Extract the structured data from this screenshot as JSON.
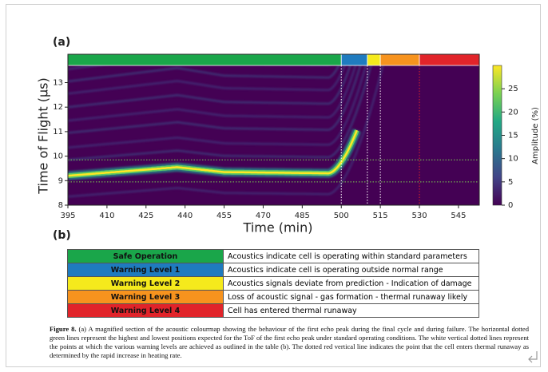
{
  "figure": {
    "panel_a": "(a)",
    "panel_b": "(b)"
  },
  "chart_data": {
    "type": "heatmap",
    "xlabel": "Time (min)",
    "ylabel": "Time of Flight (μs)",
    "xlim": [
      395,
      553
    ],
    "xticks": [
      395,
      410,
      425,
      440,
      455,
      470,
      485,
      500,
      515,
      530,
      545
    ],
    "ylim": [
      8,
      13.7
    ],
    "yticks": [
      8,
      9,
      10,
      11,
      12,
      13
    ],
    "colorbar": {
      "label": "Amplitude (%)",
      "lim": [
        0,
        30
      ],
      "ticks": [
        0,
        5,
        10,
        15,
        20,
        25
      ]
    },
    "status_bar": [
      {
        "start": 395,
        "end": 500,
        "color": "#1aa64a"
      },
      {
        "start": 500,
        "end": 510,
        "color": "#1f7bbf"
      },
      {
        "start": 510,
        "end": 515,
        "color": "#f5ea1c"
      },
      {
        "start": 515,
        "end": 530,
        "color": "#f7931e"
      },
      {
        "start": 530,
        "end": 553,
        "color": "#e1242a"
      }
    ],
    "vlines": [
      {
        "x": 500,
        "color": "#ffffff"
      },
      {
        "x": 510,
        "color": "#ffffff"
      },
      {
        "x": 515,
        "color": "#ffffff"
      },
      {
        "x": 530,
        "color": "#e1242a"
      }
    ],
    "hlines": [
      {
        "y": 9.85,
        "color": "#7ad151"
      },
      {
        "y": 8.95,
        "color": "#7ad151"
      }
    ]
  },
  "table": {
    "rows": [
      [
        "Safe Operation",
        "Acoustics indicate cell is operating within standard parameters"
      ],
      [
        "Warning Level 1",
        "Acoustics indicate cell is operating outside normal range"
      ],
      [
        "Warning Level 2",
        "Acoustics signals deviate from prediction - Indication of damage"
      ],
      [
        "Warning Level 3",
        "Loss of acoustic signal - gas formation - thermal runaway likely"
      ],
      [
        "Warning Level 4",
        "Cell has entered thermal runaway"
      ]
    ],
    "colors": [
      "#1aa64a",
      "#1f7bbf",
      "#f5ea1c",
      "#f7931e",
      "#e1242a"
    ]
  },
  "caption": {
    "label": "Figure 8.",
    "text": "(a) A magnified section of the acoustic colourmap showing the behaviour of the first echo peak during the final cycle and during failure. The horizontal dotted green lines represent the highest and lowest positions expected for the ToF of the first echo peak under standard operating conditions. The white vertical dotted lines represent the points at which the various warning levels are achieved as outlined in the table (b). The dotted red vertical line indicates the point that the cell enters thermal runaway as determined by the rapid increase in heating rate."
  }
}
